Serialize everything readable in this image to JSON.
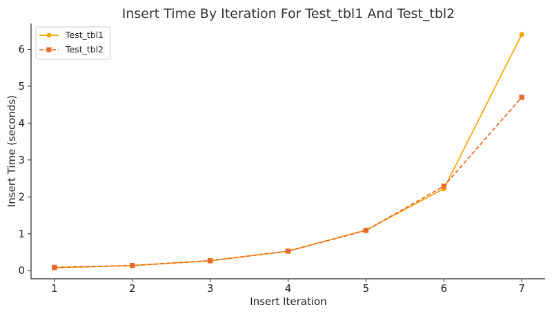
{
  "chart_data": {
    "type": "line",
    "title": "Insert Time By Iteration For Test_tbl1 And Test_tbl2",
    "xlabel": "Insert Iteration",
    "ylabel": "Insert Time (seconds)",
    "x": [
      1,
      2,
      3,
      4,
      5,
      6,
      7
    ],
    "xlim": [
      0.7,
      7.3
    ],
    "ylim": [
      -0.22,
      6.7
    ],
    "xticks": [
      1,
      2,
      3,
      4,
      5,
      6,
      7
    ],
    "yticks": [
      0,
      1,
      2,
      3,
      4,
      5,
      6
    ],
    "grid": false,
    "legend_position": "top-left",
    "series": [
      {
        "name": "Test_tbl1",
        "values": [
          0.08,
          0.14,
          0.27,
          0.53,
          1.1,
          2.22,
          6.4
        ],
        "color": "#f5a80c",
        "marker": "circle",
        "line_style": "solid"
      },
      {
        "name": "Test_tbl2",
        "values": [
          0.09,
          0.14,
          0.27,
          0.53,
          1.09,
          2.29,
          4.7
        ],
        "color": "#e8692a",
        "marker": "square",
        "line_style": "dashed"
      }
    ]
  }
}
